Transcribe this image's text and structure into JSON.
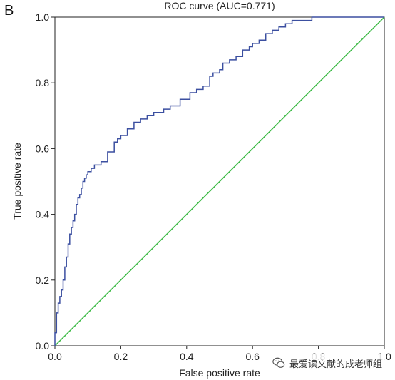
{
  "panel_label": "B",
  "watermark": {
    "text": "最爱读文献的成老师组",
    "icon": "wechat-icon"
  },
  "chart_data": {
    "type": "line",
    "title": "ROC curve (AUC=0.771)",
    "xlabel": "False positive rate",
    "ylabel": "True positive rate",
    "xlim": [
      0,
      1
    ],
    "ylim": [
      0,
      1
    ],
    "xticks": [
      "0.0",
      "0.2",
      "0.4",
      "0.6",
      "0.8",
      "1.0"
    ],
    "yticks": [
      "0.0",
      "0.2",
      "0.4",
      "0.6",
      "0.8",
      "1.0"
    ],
    "grid": false,
    "colors": {
      "roc": "#3b4fa0",
      "diagonal": "#3cba45"
    },
    "series": [
      {
        "key": "roc",
        "x": [
          0,
          0,
          0.005,
          0.005,
          0.01,
          0.01,
          0.015,
          0.015,
          0.02,
          0.02,
          0.025,
          0.025,
          0.03,
          0.03,
          0.035,
          0.035,
          0.04,
          0.04,
          0.045,
          0.045,
          0.05,
          0.05,
          0.055,
          0.055,
          0.06,
          0.06,
          0.065,
          0.065,
          0.07,
          0.07,
          0.075,
          0.075,
          0.08,
          0.08,
          0.085,
          0.085,
          0.09,
          0.09,
          0.095,
          0.095,
          0.1,
          0.1,
          0.11,
          0.11,
          0.12,
          0.12,
          0.14,
          0.14,
          0.16,
          0.16,
          0.18,
          0.18,
          0.19,
          0.19,
          0.2,
          0.2,
          0.22,
          0.22,
          0.24,
          0.24,
          0.26,
          0.26,
          0.28,
          0.28,
          0.3,
          0.3,
          0.33,
          0.33,
          0.35,
          0.35,
          0.38,
          0.38,
          0.41,
          0.41,
          0.43,
          0.43,
          0.45,
          0.45,
          0.47,
          0.47,
          0.48,
          0.48,
          0.5,
          0.5,
          0.51,
          0.51,
          0.53,
          0.53,
          0.55,
          0.55,
          0.57,
          0.57,
          0.59,
          0.59,
          0.6,
          0.6,
          0.62,
          0.62,
          0.64,
          0.64,
          0.66,
          0.66,
          0.68,
          0.68,
          0.7,
          0.7,
          0.72,
          0.72,
          0.74,
          0.74,
          0.76,
          0.76,
          0.78,
          0.78,
          0.8,
          0.8,
          0.82,
          0.82,
          0.85,
          0.85,
          0.88,
          0.88,
          0.9,
          0.9,
          0.93,
          0.93,
          0.96,
          0.96,
          1.0
        ],
        "y": [
          0,
          0.04,
          0.04,
          0.1,
          0.1,
          0.13,
          0.13,
          0.15,
          0.15,
          0.17,
          0.17,
          0.2,
          0.2,
          0.24,
          0.24,
          0.27,
          0.27,
          0.31,
          0.31,
          0.34,
          0.34,
          0.36,
          0.36,
          0.38,
          0.38,
          0.4,
          0.4,
          0.43,
          0.43,
          0.45,
          0.45,
          0.46,
          0.46,
          0.48,
          0.48,
          0.5,
          0.5,
          0.51,
          0.51,
          0.52,
          0.52,
          0.53,
          0.53,
          0.54,
          0.54,
          0.55,
          0.55,
          0.56,
          0.56,
          0.59,
          0.59,
          0.62,
          0.62,
          0.63,
          0.63,
          0.64,
          0.64,
          0.66,
          0.66,
          0.68,
          0.68,
          0.69,
          0.69,
          0.7,
          0.7,
          0.71,
          0.71,
          0.72,
          0.72,
          0.73,
          0.73,
          0.75,
          0.75,
          0.77,
          0.77,
          0.78,
          0.78,
          0.79,
          0.79,
          0.82,
          0.82,
          0.83,
          0.83,
          0.84,
          0.84,
          0.86,
          0.86,
          0.87,
          0.87,
          0.88,
          0.88,
          0.9,
          0.9,
          0.91,
          0.91,
          0.92,
          0.92,
          0.93,
          0.93,
          0.95,
          0.95,
          0.96,
          0.96,
          0.97,
          0.97,
          0.98,
          0.98,
          0.99,
          0.99,
          0.99,
          0.99,
          0.99,
          0.99,
          1.0,
          1.0,
          1.0,
          1.0,
          1.0,
          1.0,
          1.0,
          1.0,
          1.0,
          1.0,
          1.0,
          1.0,
          1.0,
          1.0,
          1.0,
          1.0
        ]
      },
      {
        "key": "diagonal",
        "x": [
          0,
          1
        ],
        "y": [
          0,
          1
        ]
      }
    ]
  }
}
